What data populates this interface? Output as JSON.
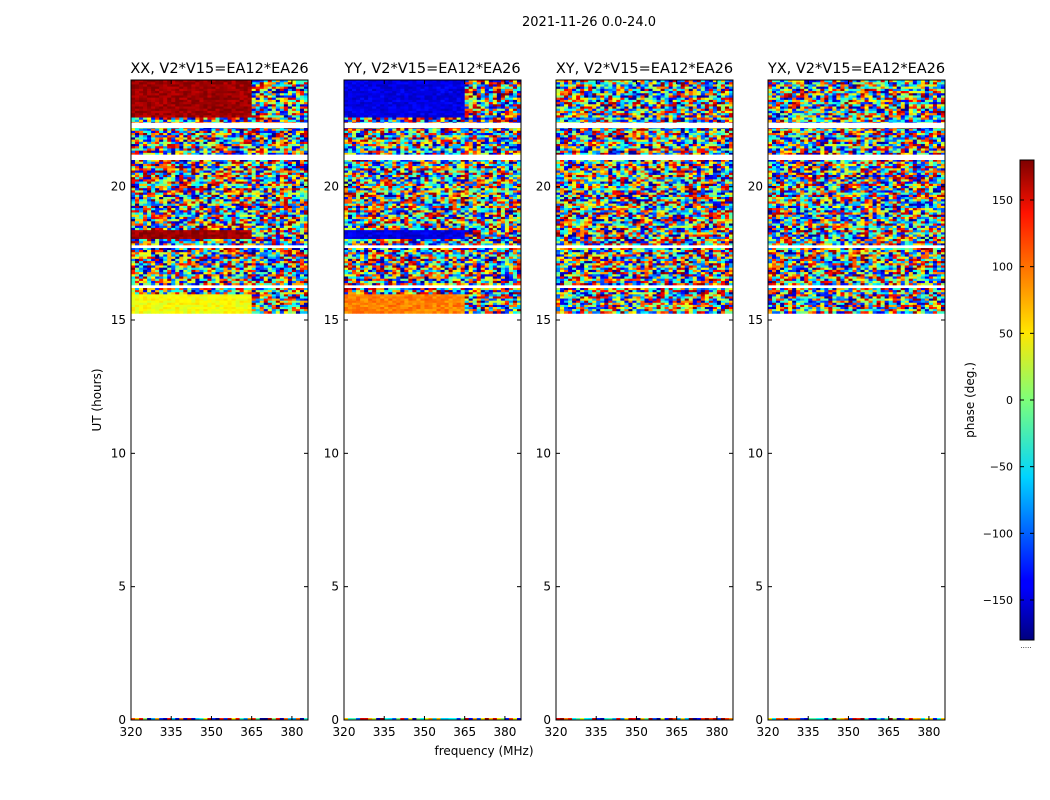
{
  "figure": {
    "suptitle": "2021-11-26 0.0-24.0",
    "ylabel": "UT (hours)",
    "xlabel": "frequency (MHz)",
    "colorbar_label": "phase (deg.)",
    "colorbar_bottom_text": "....."
  },
  "chart_data": {
    "type": "heatmap",
    "colormap": "jet",
    "xlim": [
      320,
      386
    ],
    "ylim": [
      0,
      24
    ],
    "x_ticks": [
      320,
      335,
      350,
      365,
      380
    ],
    "y_ticks": [
      0,
      5,
      10,
      15,
      20
    ],
    "data_time_ranges_hours": [
      [
        15.25,
        16.2
      ],
      [
        16.3,
        24.0
      ]
    ],
    "panels": [
      {
        "title": "XX, V2*V15=EA12*EA26",
        "pol": "XX"
      },
      {
        "title": "YY, V2*V15=EA12*EA26",
        "pol": "YY"
      },
      {
        "title": "XY, V2*V15=EA12*EA26",
        "pol": "XY"
      },
      {
        "title": "YX, V2*V15=EA12*EA26",
        "pol": "YX"
      }
    ],
    "colorbar": {
      "range": [
        -180,
        180
      ],
      "ticks": [
        150,
        100,
        50,
        0,
        -50,
        -100,
        -150
      ],
      "tick_labels": [
        "150",
        "100",
        "50",
        "0",
        "−50",
        "−100",
        "−150"
      ]
    }
  }
}
